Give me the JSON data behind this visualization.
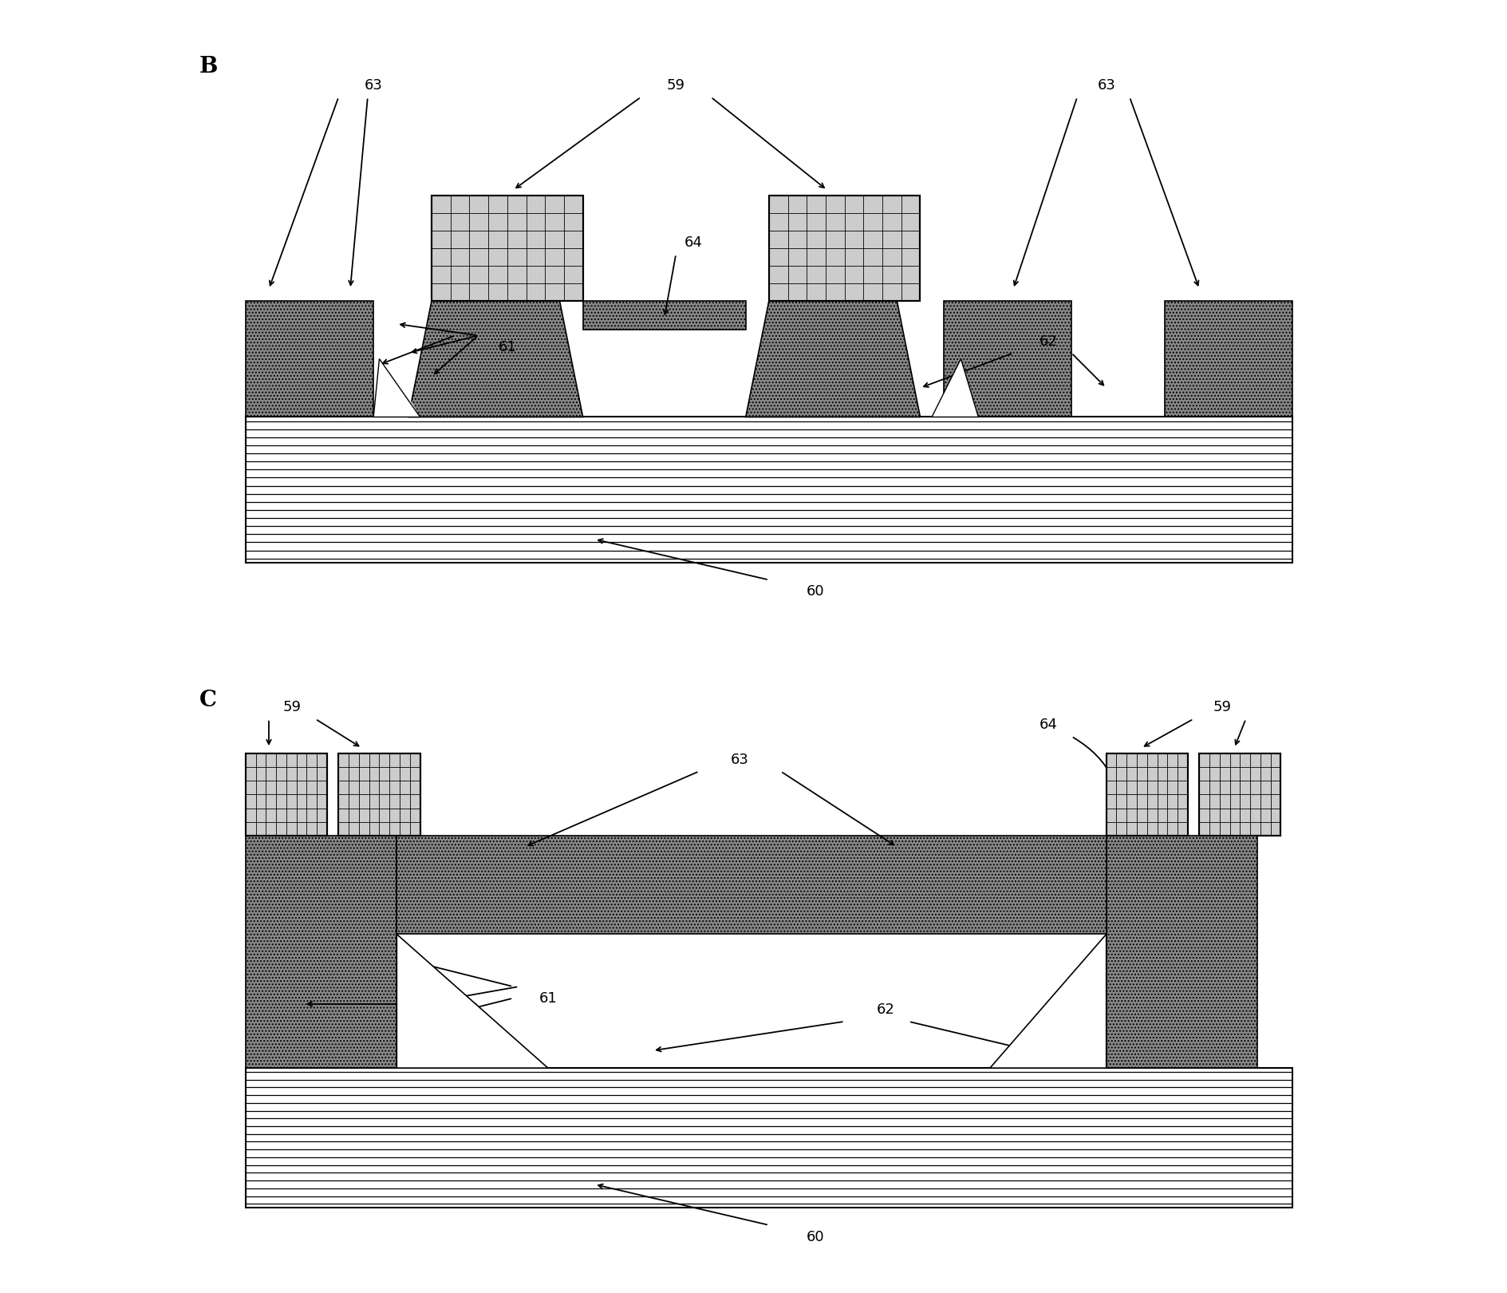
{
  "bg_color": "#ffffff",
  "gray_dark": "#777777",
  "gray_med": "#999999",
  "black": "#000000",
  "white": "#ffffff",
  "panel_B_label": "B",
  "panel_C_label": "C"
}
